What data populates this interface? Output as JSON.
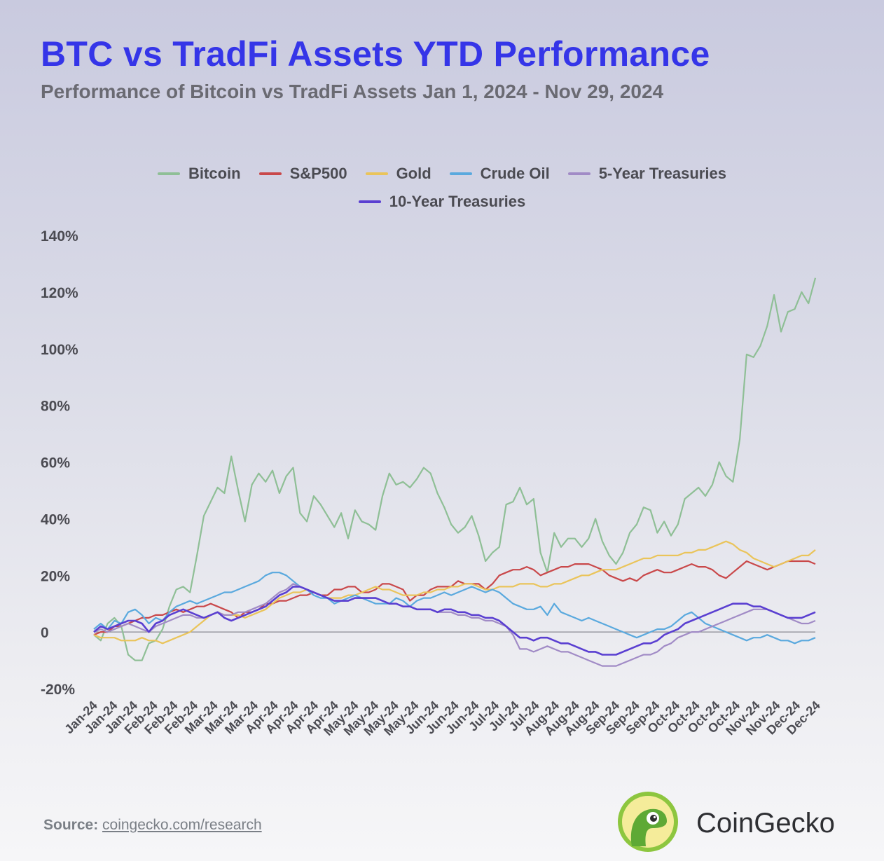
{
  "header": {
    "title": "BTC vs TradFi Assets YTD Performance",
    "subtitle": "Performance of Bitcoin vs TradFi Assets Jan 1, 2024 - Nov 29, 2024"
  },
  "footer": {
    "source_label": "Source:",
    "source_link": "coingecko.com/research",
    "brand_name": "CoinGecko",
    "logo_icon": "gecko-logo-icon"
  },
  "chart_data": {
    "type": "line",
    "title": "BTC vs TradFi Assets YTD Performance",
    "subtitle": "Performance of Bitcoin vs TradFi Assets Jan 1, 2024 - Nov 29, 2024",
    "xlabel": "",
    "ylabel": "",
    "y_ticks": [
      "140%",
      "120%",
      "100%",
      "80%",
      "60%",
      "40%",
      "20%",
      "0",
      "-20%"
    ],
    "y_tick_values": [
      140,
      120,
      100,
      80,
      60,
      40,
      20,
      0,
      -20
    ],
    "ylim": [
      -20,
      140
    ],
    "x_ticks": [
      "Jan-24",
      "Jan-24",
      "Jan-24",
      "Feb-24",
      "Feb-24",
      "Feb-24",
      "Mar-24",
      "Mar-24",
      "Mar-24",
      "Apr-24",
      "Apr-24",
      "Apr-24",
      "Apr-24",
      "May-24",
      "May-24",
      "May-24",
      "May-24",
      "Jun-24",
      "Jun-24",
      "Jun-24",
      "Jul-24",
      "Jul-24",
      "Jul-24",
      "Aug-24",
      "Aug-24",
      "Aug-24",
      "Sep-24",
      "Sep-24",
      "Sep-24",
      "Oct-24",
      "Oct-24",
      "Oct-24",
      "Oct-24",
      "Nov-24",
      "Nov-24",
      "Dec-24",
      "Dec-24"
    ],
    "x_range_dates": [
      "2024-01-01",
      "2024-11-29"
    ],
    "grid": false,
    "zero_line": true,
    "legend_position": "top-center",
    "colors": {
      "Bitcoin": "#8fbf96",
      "S&P500": "#c9484a",
      "Gold": "#eac45a",
      "Crude Oil": "#5aa9de",
      "5-Year Treasuries": "#a18bc6",
      "10-Year Treasuries": "#5a3fd1"
    },
    "series": [
      {
        "name": "Bitcoin",
        "values": [
          -1,
          -3,
          3,
          5,
          2,
          -8,
          -10,
          -10,
          -4,
          -3,
          1,
          9,
          15,
          16,
          14,
          27,
          41,
          46,
          51,
          49,
          62,
          50,
          39,
          52,
          56,
          53,
          57,
          49,
          55,
          58,
          42,
          39,
          48,
          45,
          41,
          37,
          42,
          33,
          43,
          39,
          38,
          36,
          48,
          56,
          52,
          53,
          51,
          54,
          58,
          56,
          49,
          44,
          38,
          35,
          37,
          41,
          34,
          25,
          28,
          30,
          45,
          46,
          51,
          45,
          47,
          28,
          21,
          35,
          30,
          33,
          33,
          30,
          33,
          40,
          32,
          27,
          24,
          28,
          35,
          38,
          44,
          43,
          35,
          39,
          34,
          38,
          47,
          49,
          51,
          48,
          52,
          60,
          55,
          53,
          68,
          98,
          97,
          101,
          108,
          119,
          106,
          113,
          114,
          120,
          116,
          125
        ]
      },
      {
        "name": "S&P500",
        "values": [
          -1,
          0,
          0,
          2,
          2,
          3,
          4,
          5,
          5,
          6,
          6,
          7,
          8,
          7,
          8,
          9,
          9,
          10,
          9,
          8,
          7,
          5,
          7,
          7,
          8,
          10,
          10,
          11,
          11,
          12,
          13,
          13,
          14,
          13,
          13,
          15,
          15,
          16,
          16,
          14,
          14,
          15,
          17,
          17,
          16,
          15,
          11,
          13,
          13,
          15,
          16,
          16,
          16,
          18,
          17,
          17,
          17,
          15,
          17,
          20,
          21,
          22,
          22,
          23,
          22,
          20,
          21,
          22,
          23,
          23,
          24,
          24,
          24,
          23,
          22,
          20,
          19,
          18,
          19,
          18,
          20,
          21,
          22,
          21,
          21,
          22,
          23,
          24,
          23,
          23,
          22,
          20,
          19,
          21,
          23,
          25,
          24,
          23,
          22,
          23,
          24,
          25,
          25,
          25,
          25,
          24
        ]
      },
      {
        "name": "Gold",
        "values": [
          -1,
          -2,
          -2,
          -2,
          -3,
          -3,
          -3,
          -2,
          -3,
          -3,
          -4,
          -3,
          -2,
          -1,
          0,
          2,
          4,
          6,
          7,
          6,
          6,
          6,
          5,
          6,
          7,
          8,
          10,
          12,
          13,
          14,
          14,
          15,
          14,
          13,
          12,
          12,
          12,
          13,
          13,
          14,
          15,
          16,
          15,
          15,
          14,
          13,
          13,
          13,
          14,
          14,
          15,
          15,
          16,
          16,
          17,
          17,
          16,
          15,
          15,
          16,
          16,
          16,
          17,
          17,
          17,
          16,
          16,
          17,
          17,
          18,
          19,
          20,
          20,
          21,
          22,
          22,
          22,
          23,
          24,
          25,
          26,
          26,
          27,
          27,
          27,
          27,
          28,
          28,
          29,
          29,
          30,
          31,
          32,
          31,
          29,
          28,
          26,
          25,
          24,
          23,
          24,
          25,
          26,
          27,
          27,
          29
        ]
      },
      {
        "name": "Crude Oil",
        "values": [
          1,
          3,
          1,
          4,
          3,
          7,
          8,
          6,
          3,
          5,
          4,
          7,
          9,
          10,
          11,
          10,
          11,
          12,
          13,
          14,
          14,
          15,
          16,
          17,
          18,
          20,
          21,
          21,
          20,
          18,
          16,
          15,
          13,
          12,
          12,
          10,
          11,
          12,
          13,
          12,
          11,
          10,
          10,
          10,
          12,
          11,
          9,
          11,
          12,
          12,
          13,
          14,
          13,
          14,
          15,
          16,
          15,
          14,
          15,
          14,
          12,
          10,
          9,
          8,
          8,
          9,
          6,
          10,
          7,
          6,
          5,
          4,
          5,
          4,
          3,
          2,
          1,
          0,
          -1,
          -2,
          -1,
          0,
          1,
          1,
          2,
          4,
          6,
          7,
          5,
          3,
          2,
          1,
          0,
          -1,
          -2,
          -3,
          -2,
          -2,
          -1,
          -2,
          -3,
          -3,
          -4,
          -3,
          -3,
          -2
        ]
      },
      {
        "name": "5-Year Treasuries",
        "values": [
          0,
          1,
          0,
          1,
          2,
          3,
          2,
          1,
          0,
          2,
          3,
          4,
          5,
          6,
          6,
          5,
          5,
          6,
          7,
          6,
          6,
          7,
          7,
          8,
          9,
          10,
          12,
          14,
          15,
          17,
          16,
          15,
          14,
          13,
          12,
          11,
          11,
          11,
          12,
          12,
          12,
          12,
          11,
          10,
          10,
          9,
          9,
          8,
          8,
          8,
          7,
          7,
          7,
          6,
          6,
          5,
          5,
          4,
          4,
          3,
          2,
          -1,
          -6,
          -6,
          -7,
          -6,
          -5,
          -6,
          -7,
          -7,
          -8,
          -9,
          -10,
          -11,
          -12,
          -12,
          -12,
          -11,
          -10,
          -9,
          -8,
          -8,
          -7,
          -5,
          -4,
          -2,
          -1,
          0,
          0,
          1,
          2,
          3,
          4,
          5,
          6,
          7,
          8,
          8,
          8,
          7,
          6,
          5,
          4,
          3,
          3,
          4
        ]
      },
      {
        "name": "10-Year Treasuries",
        "values": [
          0,
          2,
          1,
          2,
          3,
          4,
          4,
          3,
          0,
          3,
          4,
          6,
          7,
          8,
          7,
          6,
          5,
          6,
          7,
          5,
          4,
          5,
          6,
          7,
          8,
          9,
          11,
          13,
          14,
          16,
          16,
          15,
          14,
          13,
          12,
          11,
          11,
          11,
          12,
          12,
          12,
          12,
          11,
          10,
          10,
          9,
          9,
          8,
          8,
          8,
          7,
          8,
          8,
          7,
          7,
          6,
          6,
          5,
          5,
          4,
          2,
          0,
          -2,
          -2,
          -3,
          -2,
          -2,
          -3,
          -4,
          -4,
          -5,
          -6,
          -7,
          -7,
          -8,
          -8,
          -8,
          -7,
          -6,
          -5,
          -4,
          -4,
          -3,
          -1,
          0,
          1,
          3,
          4,
          5,
          6,
          7,
          8,
          9,
          10,
          10,
          10,
          9,
          9,
          8,
          7,
          6,
          5,
          5,
          5,
          6,
          7
        ]
      }
    ]
  }
}
